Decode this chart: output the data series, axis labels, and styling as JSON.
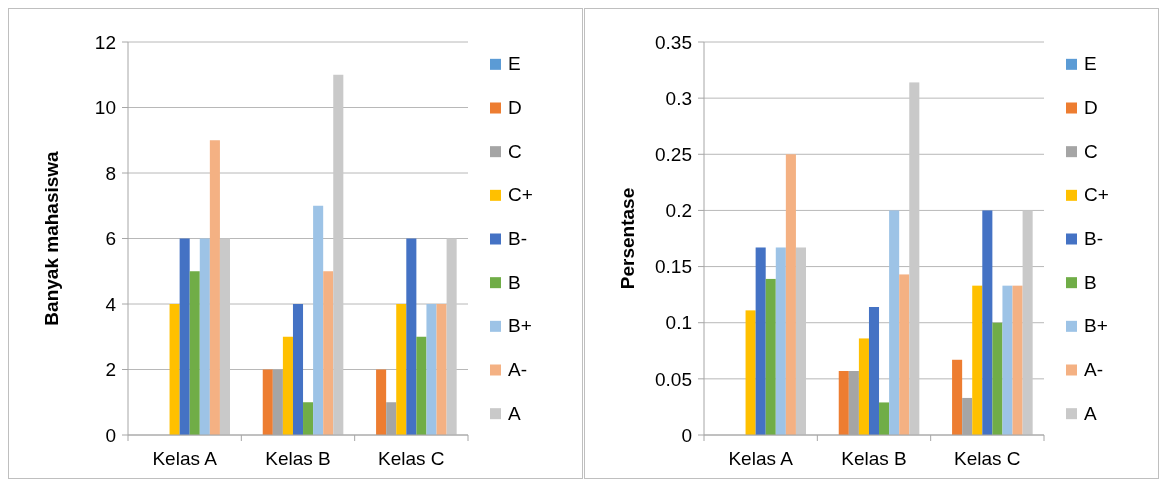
{
  "chart_data": [
    {
      "type": "bar",
      "ylabel": "Banyak mahasiswa",
      "categories": [
        "Kelas A",
        "Kelas B",
        "Kelas C"
      ],
      "ylim": [
        0,
        12
      ],
      "yticks": [
        0,
        2,
        4,
        6,
        8,
        10,
        12
      ],
      "grid": "y",
      "legend": "right",
      "series": [
        {
          "name": "E",
          "color": "#5b9bd5",
          "values": [
            0,
            0,
            0
          ]
        },
        {
          "name": "D",
          "color": "#ed7d31",
          "values": [
            0,
            2,
            2
          ]
        },
        {
          "name": "C",
          "color": "#a5a5a5",
          "values": [
            0,
            2,
            1
          ]
        },
        {
          "name": "C+",
          "color": "#ffc000",
          "values": [
            4,
            3,
            4
          ]
        },
        {
          "name": "B-",
          "color": "#4472c4",
          "values": [
            6,
            4,
            6
          ]
        },
        {
          "name": "B",
          "color": "#70ad47",
          "values": [
            5,
            1,
            3
          ]
        },
        {
          "name": "B+",
          "color": "#9dc3e6",
          "values": [
            6,
            7,
            4
          ]
        },
        {
          "name": "A-",
          "color": "#f4b183",
          "values": [
            9,
            5,
            4
          ]
        },
        {
          "name": "A",
          "color": "#c9c9c9",
          "values": [
            6,
            11,
            6
          ]
        }
      ]
    },
    {
      "type": "bar",
      "ylabel": "Persentase",
      "categories": [
        "Kelas A",
        "Kelas B",
        "Kelas C"
      ],
      "ylim": [
        0,
        0.35
      ],
      "yticks": [
        0,
        0.05,
        0.1,
        0.15,
        0.2,
        0.25,
        0.3,
        0.35
      ],
      "grid": "y",
      "legend": "right",
      "series": [
        {
          "name": "E",
          "color": "#5b9bd5",
          "values": [
            0,
            0,
            0
          ]
        },
        {
          "name": "D",
          "color": "#ed7d31",
          "values": [
            0,
            0.057,
            0.067
          ]
        },
        {
          "name": "C",
          "color": "#a5a5a5",
          "values": [
            0,
            0.057,
            0.033
          ]
        },
        {
          "name": "C+",
          "color": "#ffc000",
          "values": [
            0.111,
            0.086,
            0.133
          ]
        },
        {
          "name": "B-",
          "color": "#4472c4",
          "values": [
            0.167,
            0.114,
            0.2
          ]
        },
        {
          "name": "B",
          "color": "#70ad47",
          "values": [
            0.139,
            0.029,
            0.1
          ]
        },
        {
          "name": "B+",
          "color": "#9dc3e6",
          "values": [
            0.167,
            0.2,
            0.133
          ]
        },
        {
          "name": "A-",
          "color": "#f4b183",
          "values": [
            0.25,
            0.143,
            0.133
          ]
        },
        {
          "name": "A",
          "color": "#c9c9c9",
          "values": [
            0.167,
            0.314,
            0.2
          ]
        }
      ]
    }
  ]
}
